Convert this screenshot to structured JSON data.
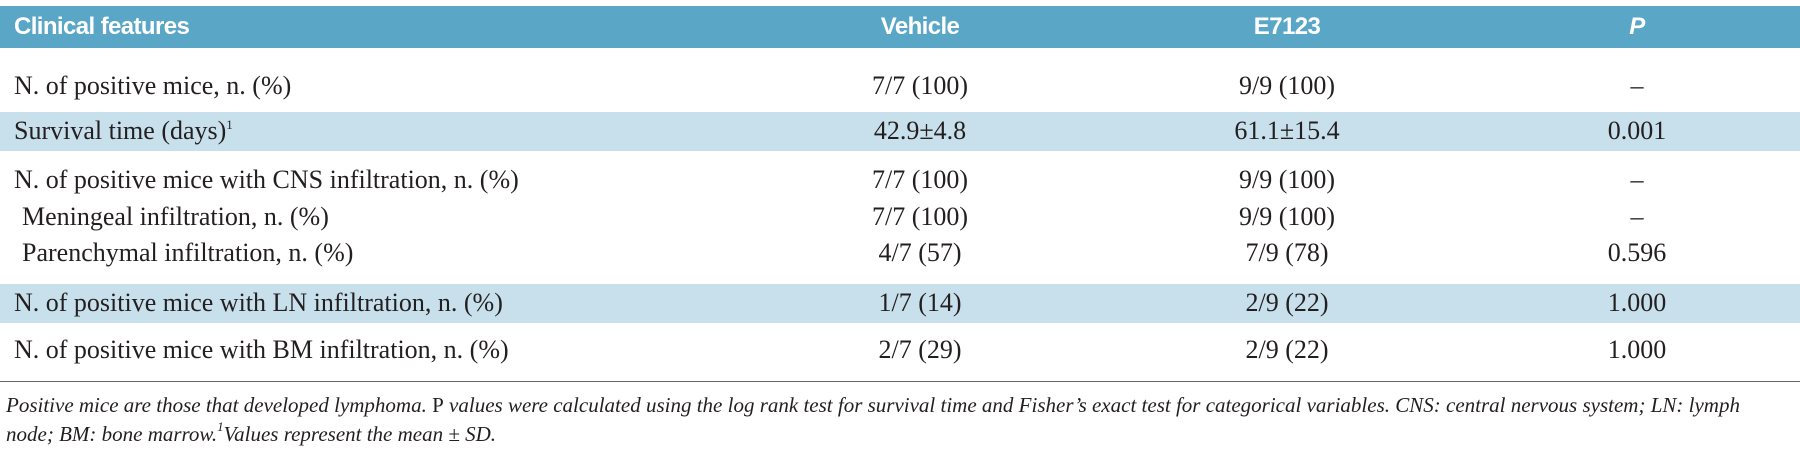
{
  "table": {
    "columns": [
      "Clinical features",
      "Vehicle",
      "E7123",
      "P"
    ],
    "rows": [
      {
        "label": "N. of positive mice, n. (%)",
        "cells": [
          "7/7 (100)",
          "9/9 (100)",
          "–"
        ],
        "shaded": false,
        "indent": false
      },
      {
        "label": "Survival time (days)",
        "sup": "1",
        "cells": [
          "42.9±4.8",
          "61.1±15.4",
          "0.001"
        ],
        "shaded": true,
        "indent": false
      },
      {
        "label": "N. of positive mice with CNS infiltration, n. (%)",
        "cells": [
          "7/7 (100)",
          "9/9 (100)",
          "–"
        ],
        "shaded": false,
        "indent": false
      },
      {
        "label": "Meningeal infiltration, n. (%)",
        "cells": [
          "7/7 (100)",
          "9/9 (100)",
          "–"
        ],
        "shaded": false,
        "indent": true
      },
      {
        "label": "Parenchymal infiltration, n. (%)",
        "cells": [
          "4/7 (57)",
          "7/9 (78)",
          "0.596"
        ],
        "shaded": false,
        "indent": true
      },
      {
        "label": "N. of positive mice with LN infiltration, n. (%)",
        "cells": [
          "1/7 (14)",
          "2/9 (22)",
          "1.000"
        ],
        "shaded": true,
        "indent": false
      },
      {
        "label": "N. of positive mice with BM infiltration, n. (%)",
        "cells": [
          "2/7 (29)",
          "2/9 (22)",
          "1.000"
        ],
        "shaded": false,
        "indent": false
      }
    ]
  },
  "footnote": {
    "text_1": "Positive mice are those that developed lymphoma. ",
    "p": "P",
    "text_2": " values were calculated using the log rank test for survival time and Fisher’s exact test for categorical variables. CNS: central nervous system; LN: lymph node; BM: bone marrow.",
    "sup": "1",
    "text_3": "Values represent the mean ± SD."
  }
}
